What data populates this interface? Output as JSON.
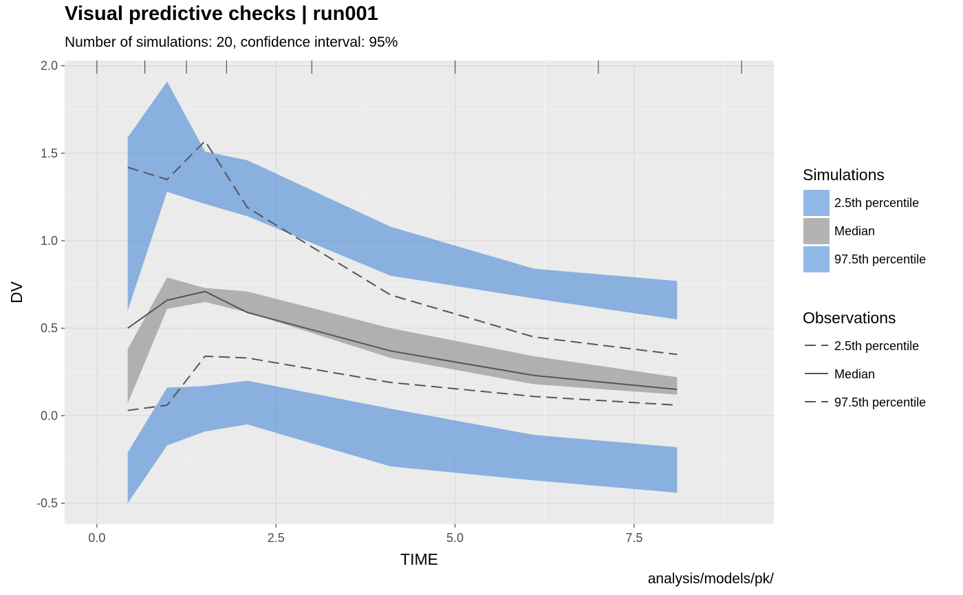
{
  "title": "Visual predictive checks | run001",
  "subtitle": "Number of simulations: 20, confidence interval: 95%",
  "caption": "analysis/models/pk/",
  "colors": {
    "panel_bg": "#ebebeb",
    "grid": "#d9d9d9",
    "sim_pi": "#4d8cd6",
    "sim_median": "#a6a6a6",
    "obs_line": "#555555"
  },
  "chart_data": {
    "type": "area",
    "xlabel": "TIME",
    "ylabel": "DV",
    "xlim": [
      -0.45,
      9.45
    ],
    "ylim": [
      -0.62,
      2.03
    ],
    "xticks": [
      0.0,
      2.5,
      5.0,
      7.5
    ],
    "xtick_labels": [
      "0.0",
      "2.5",
      "5.0",
      "7.5"
    ],
    "yticks": [
      -0.5,
      0.0,
      0.5,
      1.0,
      1.5,
      2.0
    ],
    "ytick_labels": [
      "-0.5",
      "0.0",
      "0.5",
      "1.0",
      "1.5",
      "2.0"
    ],
    "grid": true,
    "bin_separators": [
      0.0,
      0.67,
      1.25,
      1.81,
      3.0,
      5.0,
      7.0,
      9.0
    ],
    "x": [
      0.43,
      0.98,
      1.51,
      2.1,
      4.1,
      6.1,
      8.1
    ],
    "sim_ribbons": [
      {
        "name": "2.5th percentile",
        "lower": [
          -0.5,
          -0.17,
          -0.09,
          -0.05,
          -0.29,
          -0.37,
          -0.44
        ],
        "upper": [
          -0.21,
          0.16,
          0.17,
          0.2,
          0.04,
          -0.11,
          -0.18
        ]
      },
      {
        "name": "Median",
        "lower": [
          0.07,
          0.61,
          0.65,
          0.59,
          0.33,
          0.18,
          0.12
        ],
        "upper": [
          0.38,
          0.79,
          0.73,
          0.71,
          0.5,
          0.34,
          0.22
        ]
      },
      {
        "name": "97.5th percentile",
        "lower": [
          0.6,
          1.28,
          1.21,
          1.14,
          0.8,
          0.67,
          0.55
        ],
        "upper": [
          1.59,
          1.91,
          1.51,
          1.46,
          1.08,
          0.84,
          0.77
        ]
      }
    ],
    "obs_series": [
      {
        "name": "2.5th percentile",
        "linetype": "dashed",
        "values": [
          0.03,
          0.06,
          0.34,
          0.33,
          0.19,
          0.11,
          0.06
        ]
      },
      {
        "name": "Median",
        "linetype": "solid",
        "values": [
          0.5,
          0.66,
          0.71,
          0.59,
          0.37,
          0.23,
          0.15
        ]
      },
      {
        "name": "97.5th percentile",
        "linetype": "dashed",
        "values": [
          1.42,
          1.35,
          1.57,
          1.19,
          0.69,
          0.45,
          0.35
        ]
      }
    ],
    "legend_position": "right",
    "legend": {
      "simulations_title": "Simulations",
      "simulations": [
        "2.5th percentile",
        "Median",
        "97.5th percentile"
      ],
      "observations_title": "Observations",
      "observations": [
        "2.5th percentile",
        "Median",
        "97.5th percentile"
      ]
    }
  }
}
